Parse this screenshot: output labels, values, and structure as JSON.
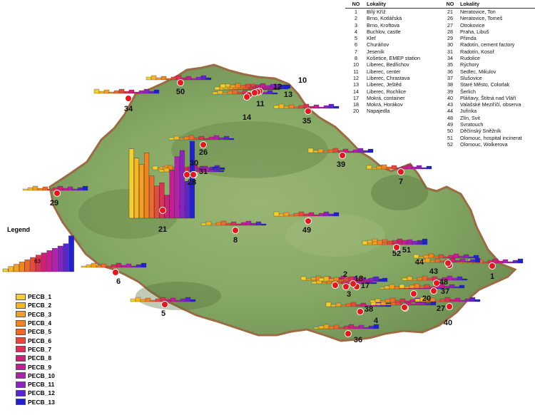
{
  "table": {
    "headers": {
      "no": "NO",
      "lokality": "Lokality"
    },
    "left": [
      {
        "no": "1",
        "name": "Bílý Kříž"
      },
      {
        "no": "2",
        "name": "Brno, Kotlářská"
      },
      {
        "no": "3",
        "name": "Brno, Kroftova"
      },
      {
        "no": "4",
        "name": "Buchlov, castle"
      },
      {
        "no": "5",
        "name": "Kleť"
      },
      {
        "no": "6",
        "name": "Churáňov"
      },
      {
        "no": "7",
        "name": "Jeseník"
      },
      {
        "no": "8",
        "name": "Košetice, EMEP station"
      },
      {
        "no": "10",
        "name": "Liberec, Bedřichov"
      },
      {
        "no": "11",
        "name": "Liberec, center"
      },
      {
        "no": "12",
        "name": "Liberec, Chrastava"
      },
      {
        "no": "13",
        "name": "Liberec, Ještěd"
      },
      {
        "no": "14",
        "name": "Liberec, Rochlice"
      },
      {
        "no": "17",
        "name": "Mokrá, container"
      },
      {
        "no": "18",
        "name": "Mokrá, Horákov"
      },
      {
        "no": "20",
        "name": "Napajedla"
      }
    ],
    "right": [
      {
        "no": "21",
        "name": "Neratovice, Ton"
      },
      {
        "no": "26",
        "name": "Neratovice, Tomeš"
      },
      {
        "no": "27",
        "name": "Otrokovice"
      },
      {
        "no": "28",
        "name": "Praha, Libuš"
      },
      {
        "no": "29",
        "name": "Přimda"
      },
      {
        "no": "30",
        "name": "Radotín, cement factory"
      },
      {
        "no": "31",
        "name": "Radotín, Kosoř"
      },
      {
        "no": "34",
        "name": "Rudolice"
      },
      {
        "no": "35",
        "name": "Rýchory"
      },
      {
        "no": "36",
        "name": "Sedlec, Mikulov"
      },
      {
        "no": "37",
        "name": "Slušovice"
      },
      {
        "no": "38",
        "name": "Staré Město, Colorlak"
      },
      {
        "no": "39",
        "name": "Šerlich"
      },
      {
        "no": "40",
        "name": "Pláňavy, Štítná nad Vláří"
      },
      {
        "no": "43",
        "name": "Valašské Meziříčí, observa"
      },
      {
        "no": "44",
        "name": "Juřinka"
      },
      {
        "no": "48",
        "name": "Zlín, Svit"
      },
      {
        "no": "49",
        "name": "Svratouch"
      },
      {
        "no": "50",
        "name": "Děčínský Sněžník"
      },
      {
        "no": "51",
        "name": "Olomouc, hospital incinerat"
      },
      {
        "no": "52",
        "name": "Olomouc, Wolkerova"
      }
    ]
  },
  "legend": {
    "title": "Legend",
    "max_label": "63",
    "items": [
      "PECB_1",
      "PECB_2",
      "PECB_3",
      "PECB_4",
      "PECB_5",
      "PECB_6",
      "PECB_7",
      "PECB_8",
      "PECB_9",
      "PECB_10",
      "PECB_11",
      "PECB_12",
      "PECB_13"
    ],
    "colors": [
      "#f5d02a",
      "#f7b523",
      "#f5a01f",
      "#f4851e",
      "#ef6a2a",
      "#e84a3a",
      "#de2f55",
      "#d31d76",
      "#c81b95",
      "#b51eb0",
      "#8c22c4",
      "#5a25cf",
      "#2020d8"
    ]
  },
  "colors": {
    "land": "#86a865",
    "site_marker": "#e8151b",
    "border": "#9b6c43"
  },
  "sites": [
    {
      "id": "1",
      "label": "1"
    },
    {
      "id": "2",
      "label": "2"
    },
    {
      "id": "3",
      "label": "3"
    },
    {
      "id": "4",
      "label": "4"
    },
    {
      "id": "5",
      "label": "5"
    },
    {
      "id": "6",
      "label": "6"
    },
    {
      "id": "7",
      "label": "7"
    },
    {
      "id": "8",
      "label": "8"
    },
    {
      "id": "10",
      "label": "10"
    },
    {
      "id": "11",
      "label": "11"
    },
    {
      "id": "12",
      "label": "12"
    },
    {
      "id": "13",
      "label": "13"
    },
    {
      "id": "14",
      "label": "14"
    },
    {
      "id": "17",
      "label": "17"
    },
    {
      "id": "18",
      "label": "18"
    },
    {
      "id": "20",
      "label": "20"
    },
    {
      "id": "21",
      "label": "21"
    },
    {
      "id": "26",
      "label": "26"
    },
    {
      "id": "27",
      "label": "27"
    },
    {
      "id": "28",
      "label": "28"
    },
    {
      "id": "29",
      "label": "29"
    },
    {
      "id": "30",
      "label": "30"
    },
    {
      "id": "31",
      "label": "31"
    },
    {
      "id": "34",
      "label": "34"
    },
    {
      "id": "35",
      "label": "35"
    },
    {
      "id": "36",
      "label": "36"
    },
    {
      "id": "37",
      "label": "37"
    },
    {
      "id": "38",
      "label": "38"
    },
    {
      "id": "39",
      "label": "39"
    },
    {
      "id": "40",
      "label": "40"
    },
    {
      "id": "43",
      "label": "43"
    },
    {
      "id": "44",
      "label": "44"
    },
    {
      "id": "48",
      "label": "48"
    },
    {
      "id": "49",
      "label": "49"
    },
    {
      "id": "50",
      "label": "50"
    },
    {
      "id": "51",
      "label": "51"
    },
    {
      "id": "52",
      "label": "52"
    }
  ]
}
